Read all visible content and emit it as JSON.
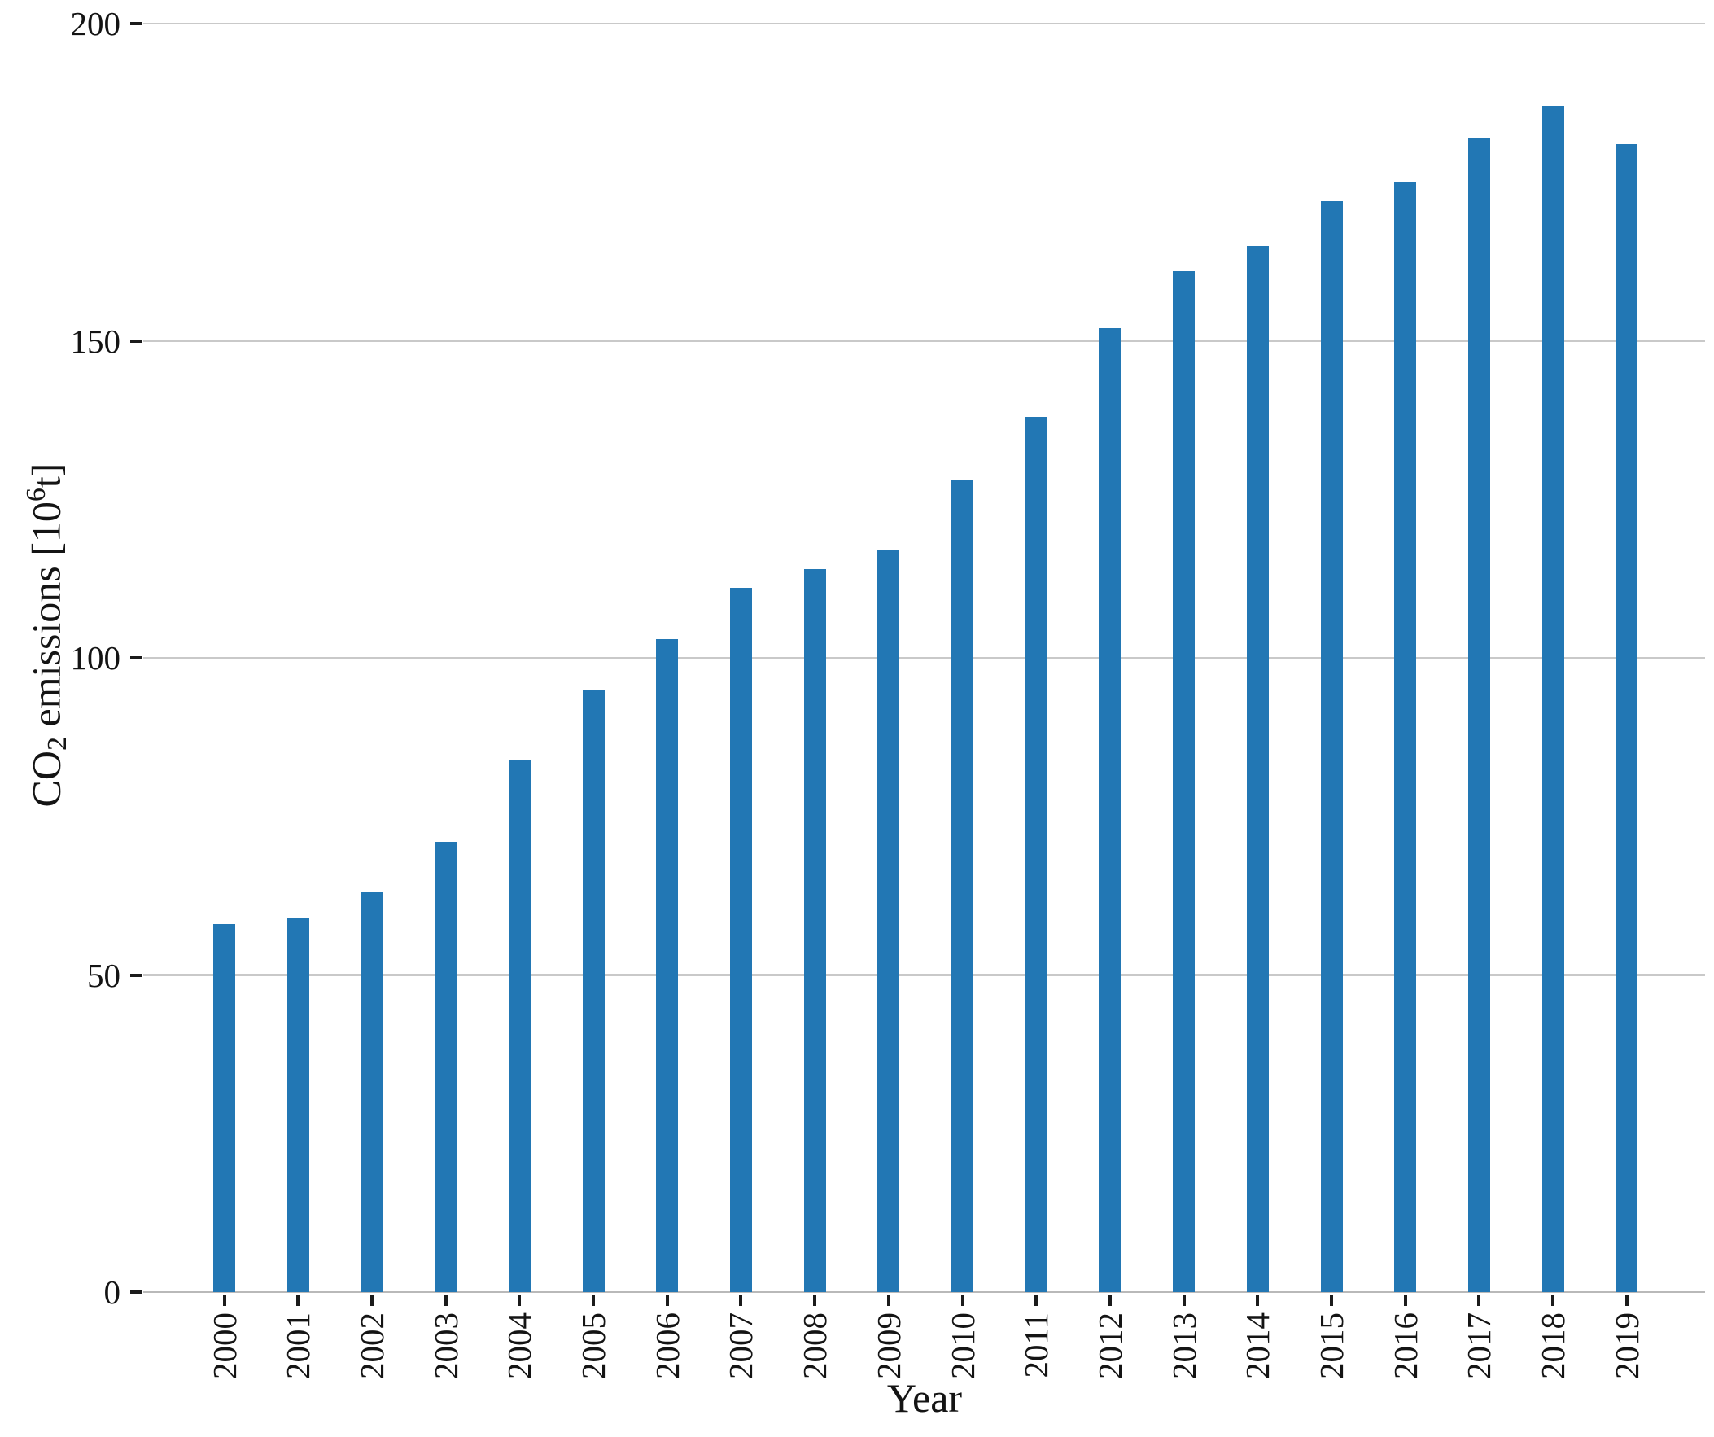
{
  "chart_data": {
    "type": "bar",
    "title": "",
    "xlabel": "Year",
    "ylabel": "CO₂ emissions [10⁶t]",
    "ylabel_parts": {
      "prefix": "CO",
      "sub": "2",
      "mid": " emissions [10",
      "sup": "6",
      "suffix": "t]"
    },
    "categories": [
      "2000",
      "2001",
      "2002",
      "2003",
      "2004",
      "2005",
      "2006",
      "2007",
      "2008",
      "2009",
      "2010",
      "2011",
      "2012",
      "2013",
      "2014",
      "2015",
      "2016",
      "2017",
      "2018",
      "2019"
    ],
    "values": [
      58,
      59,
      63,
      71,
      84,
      95,
      103,
      111,
      114,
      117,
      128,
      138,
      152,
      161,
      165,
      172,
      175,
      182,
      187,
      181
    ],
    "series": [
      {
        "name": "CO2 emissions [10^6 t]",
        "values": [
          58,
          59,
          63,
          71,
          84,
          95,
          103,
          111,
          114,
          117,
          128,
          138,
          152,
          161,
          165,
          172,
          175,
          182,
          187,
          181
        ]
      }
    ],
    "ytick_values": [
      0,
      50,
      100,
      150,
      200
    ],
    "ylim": [
      0,
      200
    ],
    "grid": "horizontal",
    "legend_position": "none",
    "colors": {
      "bar": "#2277b4",
      "gridline": "#c9c9c9",
      "axis_line": "#b9b9b9",
      "tick_mark": "#1b1b1b",
      "text": "#141414",
      "background": "#ffffff"
    }
  }
}
